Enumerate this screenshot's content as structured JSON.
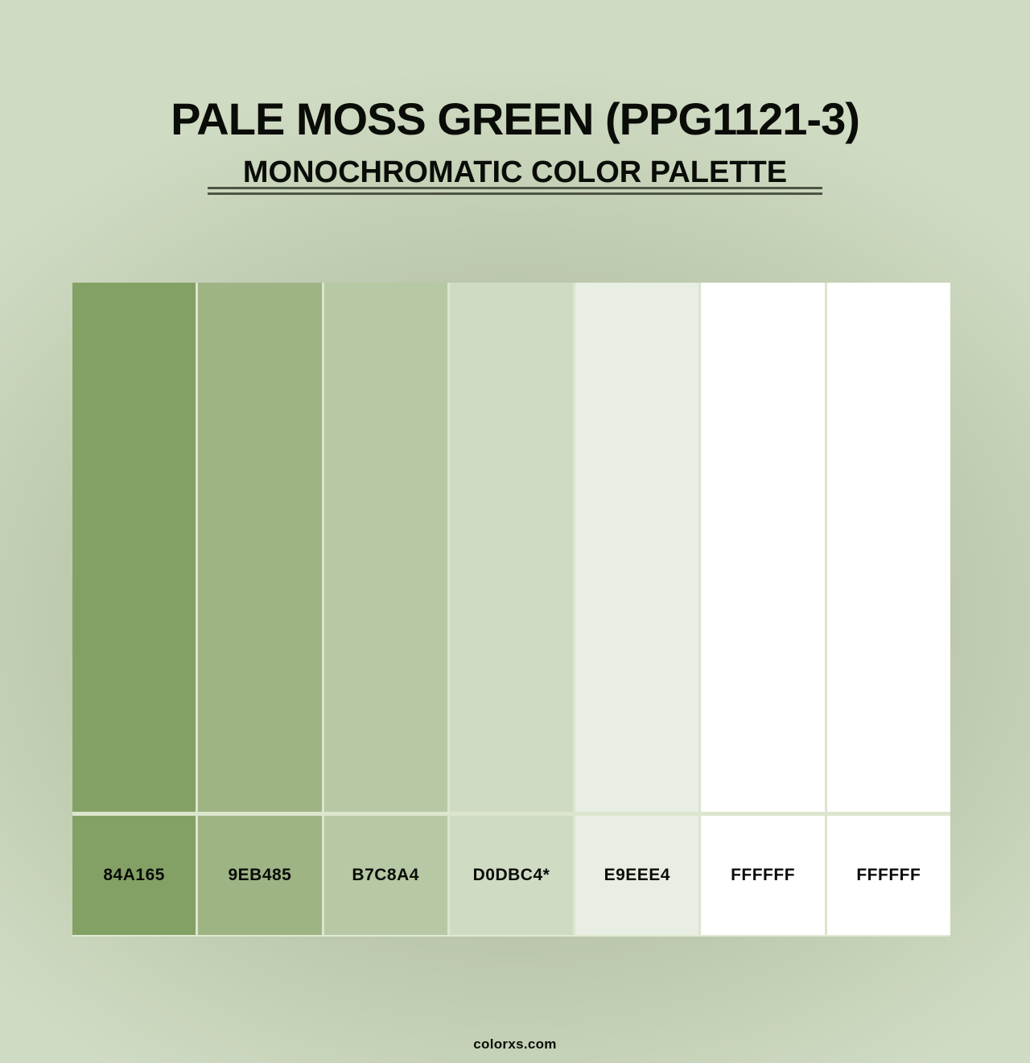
{
  "page": {
    "title": "PALE MOSS GREEN (PPG1121-3)",
    "subtitle": "MONOCHROMATIC COLOR PALETTE",
    "footer": "colorxs.com"
  },
  "chart_data": {
    "type": "table",
    "title": "PALE MOSS GREEN (PPG1121-3)",
    "subtitle": "MONOCHROMATIC COLOR PALETTE",
    "categories": [
      "84A165",
      "9EB485",
      "B7C8A4",
      "D0DBC4*",
      "E9EEE4",
      "FFFFFF",
      "FFFFFF"
    ],
    "swatches": [
      {
        "hex_label": "84A165",
        "color": "#84A165"
      },
      {
        "hex_label": "9EB485",
        "color": "#9EB485"
      },
      {
        "hex_label": "B7C8A4",
        "color": "#B7C8A4"
      },
      {
        "hex_label": "D0DBC4*",
        "color": "#D0DBC4"
      },
      {
        "hex_label": "E9EEE4",
        "color": "#E9EEE4"
      },
      {
        "hex_label": "FFFFFF",
        "color": "#FFFFFF"
      },
      {
        "hex_label": "FFFFFF",
        "color": "#FFFFFF"
      }
    ],
    "base_color_marker": "*",
    "layout": "7 vertical swatch columns with hex code labels below each swatch"
  },
  "colors": {
    "background_center": "#a6b09a",
    "background_corner": "#d0dbc4",
    "gap_color": "#dce5cd",
    "divider_color": "#4d5444",
    "title_color": "#0a0c08",
    "label_color": "#0a0c08"
  }
}
